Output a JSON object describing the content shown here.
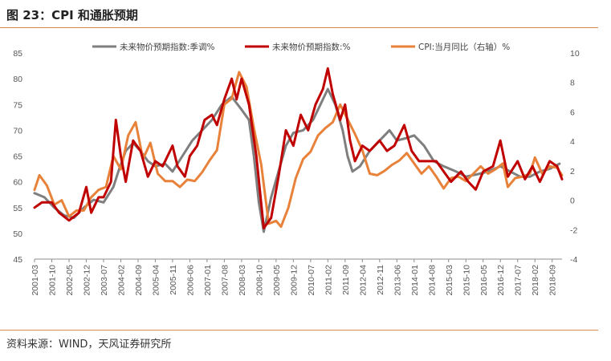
{
  "figure": {
    "title": "图 23：CPI 和通胀预期",
    "source": "资料来源：WIND，天风证券研究所"
  },
  "chart_data": {
    "type": "line",
    "title": "图 23：CPI 和通胀预期",
    "x_tick_labels": [
      "2001-03",
      "2001-10",
      "2002-05",
      "2002-12",
      "2003-07",
      "2004-02",
      "2004-09",
      "2005-04",
      "2005-11",
      "2006-06",
      "2007-01",
      "2007-08",
      "2008-03",
      "2008-10",
      "2009-05",
      "2009-12",
      "2010-07",
      "2011-02",
      "2011-09",
      "2012-04",
      "2012-11",
      "2013-06",
      "2014-01",
      "2014-08",
      "2015-03",
      "2015-10",
      "2016-05",
      "2016-12",
      "2017-07",
      "2018-02",
      "2018-09"
    ],
    "y_left": {
      "min": 45,
      "max": 85,
      "ticks": [
        "85",
        "80",
        "75",
        "70",
        "65",
        "60",
        "55",
        "50",
        "45"
      ]
    },
    "y_right": {
      "min": -4,
      "max": 10,
      "ticks": [
        "10",
        "8",
        "6",
        "4",
        "2",
        "0",
        "-2",
        "-4"
      ]
    },
    "legend_position": "top",
    "grid": false,
    "series": [
      {
        "name": "未来物价预期指数:季调%",
        "axis": "left",
        "color": "#7f7f7f",
        "points": [
          [
            "2001-03",
            57.8
          ],
          [
            "2001-07",
            57
          ],
          [
            "2001-11",
            55
          ],
          [
            "2002-03",
            53.5
          ],
          [
            "2002-07",
            53
          ],
          [
            "2002-11",
            55
          ],
          [
            "2003-03",
            56.5
          ],
          [
            "2003-07",
            56
          ],
          [
            "2003-11",
            59
          ],
          [
            "2004-01",
            62
          ],
          [
            "2004-04",
            66
          ],
          [
            "2004-07",
            67.5
          ],
          [
            "2004-10",
            66
          ],
          [
            "2005-01",
            64
          ],
          [
            "2005-04",
            63
          ],
          [
            "2005-08",
            63.5
          ],
          [
            "2005-11",
            62
          ],
          [
            "2006-03",
            65
          ],
          [
            "2006-07",
            68
          ],
          [
            "2006-11",
            70
          ],
          [
            "2007-03",
            72
          ],
          [
            "2007-07",
            75
          ],
          [
            "2007-11",
            76.5
          ],
          [
            "2008-03",
            74
          ],
          [
            "2008-06",
            72
          ],
          [
            "2008-08",
            65
          ],
          [
            "2008-10",
            56
          ],
          [
            "2008-12",
            50.3
          ],
          [
            "2009-03",
            57
          ],
          [
            "2009-06",
            62
          ],
          [
            "2009-09",
            67
          ],
          [
            "2009-12",
            69.5
          ],
          [
            "2010-04",
            70
          ],
          [
            "2010-08",
            72
          ],
          [
            "2010-11",
            75
          ],
          [
            "2011-02",
            78
          ],
          [
            "2011-05",
            75
          ],
          [
            "2011-08",
            70
          ],
          [
            "2011-10",
            65
          ],
          [
            "2011-12",
            62
          ],
          [
            "2012-03",
            63
          ],
          [
            "2012-07",
            66
          ],
          [
            "2012-11",
            68
          ],
          [
            "2013-03",
            70
          ],
          [
            "2013-06",
            68
          ],
          [
            "2013-10",
            68.5
          ],
          [
            "2014-01",
            69
          ],
          [
            "2014-05",
            67
          ],
          [
            "2014-09",
            64
          ],
          [
            "2015-01",
            63
          ],
          [
            "2015-06",
            62
          ],
          [
            "2015-10",
            61
          ],
          [
            "2016-03",
            61.5
          ],
          [
            "2016-07",
            62
          ],
          [
            "2016-12",
            63
          ],
          [
            "2017-04",
            62
          ],
          [
            "2017-08",
            61
          ],
          [
            "2017-12",
            61
          ],
          [
            "2018-04",
            62
          ],
          [
            "2018-08",
            62.5
          ],
          [
            "2018-12",
            63.5
          ]
        ]
      },
      {
        "name": "未来物价预期指数:%",
        "axis": "left",
        "color": "#c00000",
        "points": [
          [
            "2001-03",
            55
          ],
          [
            "2001-06",
            56
          ],
          [
            "2001-10",
            56
          ],
          [
            "2002-01",
            54
          ],
          [
            "2002-05",
            52.5
          ],
          [
            "2002-09",
            54
          ],
          [
            "2002-12",
            59
          ],
          [
            "2003-02",
            54
          ],
          [
            "2003-05",
            57
          ],
          [
            "2003-07",
            57
          ],
          [
            "2003-10",
            60
          ],
          [
            "2003-12",
            72
          ],
          [
            "2004-02",
            65
          ],
          [
            "2004-04",
            60
          ],
          [
            "2004-07",
            68
          ],
          [
            "2004-10",
            66
          ],
          [
            "2005-01",
            61
          ],
          [
            "2005-04",
            64
          ],
          [
            "2005-07",
            63
          ],
          [
            "2005-11",
            67
          ],
          [
            "2006-01",
            63
          ],
          [
            "2006-04",
            61
          ],
          [
            "2006-06",
            65
          ],
          [
            "2006-09",
            67
          ],
          [
            "2006-12",
            72
          ],
          [
            "2007-03",
            73
          ],
          [
            "2007-05",
            71
          ],
          [
            "2007-08",
            76
          ],
          [
            "2007-11",
            80
          ],
          [
            "2008-01",
            76
          ],
          [
            "2008-03",
            80
          ],
          [
            "2008-06",
            75
          ],
          [
            "2008-09",
            65
          ],
          [
            "2008-12",
            51
          ],
          [
            "2009-03",
            53
          ],
          [
            "2009-06",
            61
          ],
          [
            "2009-09",
            70
          ],
          [
            "2009-12",
            67
          ],
          [
            "2010-03",
            73
          ],
          [
            "2010-06",
            70
          ],
          [
            "2010-09",
            75
          ],
          [
            "2010-12",
            78
          ],
          [
            "2011-02",
            82
          ],
          [
            "2011-04",
            77
          ],
          [
            "2011-07",
            72
          ],
          [
            "2011-09",
            75
          ],
          [
            "2011-11",
            68
          ],
          [
            "2012-01",
            64
          ],
          [
            "2012-04",
            67
          ],
          [
            "2012-07",
            66
          ],
          [
            "2012-11",
            68
          ],
          [
            "2013-02",
            66
          ],
          [
            "2013-05",
            67
          ],
          [
            "2013-09",
            71
          ],
          [
            "2013-12",
            66
          ],
          [
            "2014-03",
            64
          ],
          [
            "2014-06",
            64
          ],
          [
            "2014-10",
            64
          ],
          [
            "2015-01",
            62
          ],
          [
            "2015-04",
            60
          ],
          [
            "2015-08",
            62
          ],
          [
            "2015-11",
            60
          ],
          [
            "2016-02",
            58.5
          ],
          [
            "2016-05",
            62
          ],
          [
            "2016-09",
            63
          ],
          [
            "2016-12",
            68
          ],
          [
            "2017-03",
            61
          ],
          [
            "2017-07",
            64
          ],
          [
            "2017-10",
            60.5
          ],
          [
            "2018-01",
            63
          ],
          [
            "2018-04",
            60
          ],
          [
            "2018-08",
            64
          ],
          [
            "2018-11",
            63
          ],
          [
            "2019-01",
            60.5
          ]
        ]
      },
      {
        "name": "CPI:当月同比（右轴）%",
        "axis": "right",
        "color": "#e8823a",
        "points": [
          [
            "2001-03",
            0.7
          ],
          [
            "2001-05",
            1.7
          ],
          [
            "2001-08",
            1.0
          ],
          [
            "2001-11",
            -0.3
          ],
          [
            "2002-02",
            0
          ],
          [
            "2002-05",
            -1.1
          ],
          [
            "2002-08",
            -0.7
          ],
          [
            "2002-11",
            -0.7
          ],
          [
            "2003-02",
            0.2
          ],
          [
            "2003-05",
            0.7
          ],
          [
            "2003-08",
            0.9
          ],
          [
            "2003-11",
            3.0
          ],
          [
            "2004-02",
            2.1
          ],
          [
            "2004-05",
            4.4
          ],
          [
            "2004-08",
            5.3
          ],
          [
            "2004-11",
            2.8
          ],
          [
            "2005-02",
            3.9
          ],
          [
            "2005-05",
            1.8
          ],
          [
            "2005-08",
            1.3
          ],
          [
            "2005-11",
            1.3
          ],
          [
            "2006-02",
            0.9
          ],
          [
            "2006-05",
            1.4
          ],
          [
            "2006-08",
            1.3
          ],
          [
            "2006-11",
            1.9
          ],
          [
            "2007-02",
            2.7
          ],
          [
            "2007-05",
            3.4
          ],
          [
            "2007-08",
            6.5
          ],
          [
            "2007-11",
            6.9
          ],
          [
            "2008-02",
            8.7
          ],
          [
            "2008-05",
            7.7
          ],
          [
            "2008-08",
            4.9
          ],
          [
            "2008-11",
            2.4
          ],
          [
            "2009-02",
            -1.6
          ],
          [
            "2009-05",
            -1.4
          ],
          [
            "2009-07",
            -1.8
          ],
          [
            "2009-10",
            -0.5
          ],
          [
            "2010-01",
            1.5
          ],
          [
            "2010-04",
            2.8
          ],
          [
            "2010-07",
            3.3
          ],
          [
            "2010-10",
            4.4
          ],
          [
            "2011-01",
            4.9
          ],
          [
            "2011-04",
            5.3
          ],
          [
            "2011-07",
            6.5
          ],
          [
            "2011-10",
            5.5
          ],
          [
            "2012-01",
            4.5
          ],
          [
            "2012-04",
            3.4
          ],
          [
            "2012-07",
            1.8
          ],
          [
            "2012-10",
            1.7
          ],
          [
            "2013-01",
            2.0
          ],
          [
            "2013-04",
            2.4
          ],
          [
            "2013-07",
            2.7
          ],
          [
            "2013-10",
            3.2
          ],
          [
            "2014-01",
            2.5
          ],
          [
            "2014-04",
            1.8
          ],
          [
            "2014-07",
            2.3
          ],
          [
            "2014-10",
            1.6
          ],
          [
            "2015-01",
            0.8
          ],
          [
            "2015-04",
            1.5
          ],
          [
            "2015-07",
            1.6
          ],
          [
            "2015-10",
            1.3
          ],
          [
            "2016-01",
            1.8
          ],
          [
            "2016-04",
            2.3
          ],
          [
            "2016-07",
            1.8
          ],
          [
            "2016-10",
            2.1
          ],
          [
            "2017-01",
            2.5
          ],
          [
            "2017-03",
            0.9
          ],
          [
            "2017-06",
            1.5
          ],
          [
            "2017-09",
            1.6
          ],
          [
            "2017-12",
            1.8
          ],
          [
            "2018-02",
            2.9
          ],
          [
            "2018-05",
            1.8
          ],
          [
            "2018-08",
            2.3
          ],
          [
            "2018-11",
            2.2
          ],
          [
            "2019-01",
            1.7
          ]
        ]
      }
    ]
  }
}
